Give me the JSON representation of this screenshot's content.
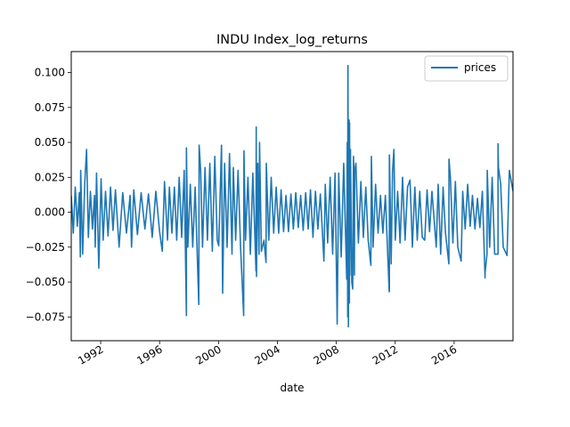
{
  "chart_data": {
    "type": "line",
    "title": "INDU Index_log_returns",
    "xlabel": "date",
    "ylabel": "",
    "xlim": [
      "1990-01-01",
      "2019-12-31"
    ],
    "ylim": [
      -0.092,
      0.115
    ],
    "grid": false,
    "legend_position": "top-right",
    "x_ticks": [
      {
        "date": "1992-01-01",
        "label": "1992"
      },
      {
        "date": "1996-01-01",
        "label": "1996"
      },
      {
        "date": "2000-01-01",
        "label": "2000"
      },
      {
        "date": "2004-01-01",
        "label": "2004"
      },
      {
        "date": "2008-01-01",
        "label": "2008"
      },
      {
        "date": "2012-01-01",
        "label": "2012"
      },
      {
        "date": "2016-01-01",
        "label": "2016"
      }
    ],
    "y_ticks": [
      {
        "value": 0.1,
        "label": "0.100"
      },
      {
        "value": 0.075,
        "label": "0.075"
      },
      {
        "value": 0.05,
        "label": "0.050"
      },
      {
        "value": 0.025,
        "label": "0.025"
      },
      {
        "value": 0.0,
        "label": "0.000"
      },
      {
        "value": -0.025,
        "label": "−0.025"
      },
      {
        "value": -0.05,
        "label": "−0.050"
      },
      {
        "value": -0.075,
        "label": "−0.075"
      }
    ],
    "series": [
      {
        "name": "prices",
        "color": "#1f77b4",
        "x": [
          "1990-01-01",
          "1990-02-20",
          "1990-04-10",
          "1990-06-01",
          "1990-07-20",
          "1990-08-15",
          "1990-08-23",
          "1990-10-10",
          "1990-12-01",
          "1991-01-17",
          "1991-03-01",
          "1991-04-20",
          "1991-06-10",
          "1991-08-01",
          "1991-08-19",
          "1991-09-20",
          "1991-11-15",
          "1992-01-10",
          "1992-03-01",
          "1992-05-01",
          "1992-07-01",
          "1992-09-01",
          "1992-11-01",
          "1993-01-01",
          "1993-04-01",
          "1993-07-01",
          "1993-10-01",
          "1994-01-01",
          "1994-02-04",
          "1994-04-01",
          "1994-07-01",
          "1994-10-01",
          "1995-01-01",
          "1995-04-01",
          "1995-07-01",
          "1995-10-01",
          "1996-01-01",
          "1996-03-08",
          "1996-05-01",
          "1996-07-15",
          "1996-09-01",
          "1996-11-01",
          "1997-01-01",
          "1997-03-01",
          "1997-05-01",
          "1997-07-01",
          "1997-09-01",
          "1997-10-27",
          "1997-10-28",
          "1997-12-01",
          "1998-02-01",
          "1998-04-01",
          "1998-06-01",
          "1998-08-31",
          "1998-09-08",
          "1998-10-15",
          "1998-12-01",
          "1999-02-01",
          "1999-04-01",
          "1999-06-01",
          "1999-08-01",
          "1999-10-01",
          "1999-12-01",
          "2000-01-07",
          "2000-03-16",
          "2000-04-14",
          "2000-06-01",
          "2000-08-01",
          "2000-10-01",
          "2000-12-01",
          "2001-01-03",
          "2001-03-01",
          "2001-05-01",
          "2001-07-01",
          "2001-09-17",
          "2001-09-24",
          "2001-11-01",
          "2002-01-01",
          "2002-03-01",
          "2002-05-01",
          "2002-07-19",
          "2002-07-24",
          "2002-08-01",
          "2002-09-01",
          "2002-10-01",
          "2002-10-15",
          "2002-12-01",
          "2003-02-01",
          "2003-03-24",
          "2003-04-01",
          "2003-06-01",
          "2003-08-01",
          "2003-10-01",
          "2003-12-01",
          "2004-02-01",
          "2004-04-01",
          "2004-06-01",
          "2004-08-01",
          "2004-10-01",
          "2004-12-01",
          "2005-02-01",
          "2005-04-01",
          "2005-06-01",
          "2005-08-01",
          "2005-10-01",
          "2005-12-01",
          "2006-02-01",
          "2006-04-01",
          "2006-06-01",
          "2006-08-01",
          "2006-10-01",
          "2006-12-01",
          "2007-02-27",
          "2007-04-01",
          "2007-06-01",
          "2007-08-01",
          "2007-10-01",
          "2007-12-01",
          "2008-01-22",
          "2008-03-01",
          "2008-05-01",
          "2008-07-01",
          "2008-09-15",
          "2008-09-29",
          "2008-10-09",
          "2008-10-13",
          "2008-10-15",
          "2008-10-28",
          "2008-11-13",
          "2008-11-20",
          "2008-11-24",
          "2008-12-01",
          "2008-12-16",
          "2009-01-20",
          "2009-02-10",
          "2009-03-01",
          "2009-03-10",
          "2009-03-23",
          "2009-04-01",
          "2009-05-01",
          "2009-07-01",
          "2009-09-01",
          "2009-11-01",
          "2010-01-01",
          "2010-03-01",
          "2010-05-06",
          "2010-05-20",
          "2010-07-01",
          "2010-09-01",
          "2010-11-01",
          "2011-01-01",
          "2011-03-01",
          "2011-05-01",
          "2011-08-04",
          "2011-08-08",
          "2011-08-09",
          "2011-08-10",
          "2011-08-11",
          "2011-09-22",
          "2011-10-27",
          "2011-11-30",
          "2012-01-01",
          "2012-03-01",
          "2012-05-01",
          "2012-07-01",
          "2012-09-01",
          "2012-11-01",
          "2013-01-02",
          "2013-03-01",
          "2013-05-01",
          "2013-07-01",
          "2013-09-01",
          "2013-11-01",
          "2014-01-01",
          "2014-03-01",
          "2014-05-01",
          "2014-07-01",
          "2014-10-15",
          "2014-12-01",
          "2015-02-01",
          "2015-04-01",
          "2015-06-01",
          "2015-08-24",
          "2015-08-26",
          "2015-10-01",
          "2015-12-01",
          "2016-02-01",
          "2016-04-01",
          "2016-06-24",
          "2016-08-01",
          "2016-10-01",
          "2016-12-01",
          "2017-02-01",
          "2017-04-01",
          "2017-06-01",
          "2017-08-01",
          "2017-10-01",
          "2017-12-01",
          "2018-02-05",
          "2018-02-08",
          "2018-03-26",
          "2018-04-01",
          "2018-06-01",
          "2018-08-01",
          "2018-10-01",
          "2018-12-24",
          "2018-12-26",
          "2019-01-04",
          "2019-03-01",
          "2019-05-01",
          "2019-08-05",
          "2019-10-01",
          "2019-12-31"
        ],
        "y": [
          0.012,
          -0.015,
          0.018,
          -0.01,
          0.014,
          -0.032,
          0.03,
          -0.03,
          0.02,
          0.045,
          -0.018,
          0.015,
          -0.012,
          0.012,
          -0.025,
          0.028,
          -0.04,
          0.024,
          -0.02,
          0.015,
          -0.017,
          0.018,
          -0.013,
          0.016,
          -0.025,
          0.014,
          -0.015,
          0.012,
          -0.025,
          0.016,
          -0.016,
          0.014,
          -0.012,
          0.013,
          -0.018,
          0.015,
          -0.014,
          -0.028,
          0.022,
          -0.02,
          0.018,
          -0.015,
          0.018,
          -0.02,
          0.025,
          -0.018,
          0.03,
          -0.074,
          0.046,
          -0.025,
          0.02,
          -0.025,
          0.018,
          -0.066,
          0.048,
          0.03,
          -0.025,
          0.032,
          -0.02,
          0.035,
          -0.028,
          0.04,
          -0.02,
          -0.024,
          0.048,
          -0.058,
          0.035,
          -0.025,
          0.042,
          -0.03,
          0.032,
          -0.02,
          0.03,
          -0.025,
          -0.074,
          0.044,
          -0.02,
          0.025,
          -0.03,
          0.028,
          -0.042,
          0.061,
          -0.046,
          0.035,
          -0.03,
          0.05,
          -0.028,
          -0.02,
          -0.036,
          0.035,
          -0.02,
          0.025,
          -0.015,
          0.018,
          -0.015,
          0.016,
          -0.014,
          0.012,
          -0.014,
          0.013,
          -0.012,
          0.014,
          -0.011,
          0.012,
          -0.013,
          0.014,
          -0.012,
          0.016,
          -0.018,
          0.015,
          -0.012,
          0.013,
          -0.035,
          0.02,
          -0.022,
          0.025,
          -0.03,
          0.028,
          -0.08,
          0.028,
          -0.032,
          0.035,
          -0.048,
          0.05,
          -0.075,
          0.105,
          0.104,
          -0.082,
          0.066,
          -0.065,
          0.064,
          -0.045,
          0.045,
          -0.05,
          -0.055,
          0.04,
          0.03,
          -0.045,
          0.03,
          0.035,
          -0.022,
          0.022,
          -0.018,
          0.018,
          -0.02,
          -0.038,
          0.04,
          -0.025,
          0.02,
          -0.015,
          0.012,
          -0.015,
          0.012,
          -0.057,
          -0.056,
          0.041,
          -0.052,
          0.04,
          -0.037,
          0.03,
          0.045,
          -0.02,
          0.015,
          -0.022,
          0.025,
          -0.02,
          0.018,
          0.023,
          -0.025,
          0.018,
          -0.02,
          0.015,
          -0.018,
          -0.02,
          0.016,
          -0.014,
          0.015,
          -0.025,
          0.02,
          -0.03,
          0.018,
          -0.015,
          -0.037,
          0.038,
          0.025,
          -0.022,
          0.022,
          -0.025,
          -0.035,
          0.015,
          -0.012,
          0.02,
          -0.01,
          0.012,
          -0.012,
          0.01,
          -0.011,
          0.015,
          -0.047,
          -0.043,
          -0.03,
          0.03,
          -0.025,
          0.025,
          -0.03,
          -0.03,
          0.049,
          0.032,
          0.02,
          -0.025,
          -0.031,
          0.03,
          0.015
        ]
      }
    ]
  }
}
